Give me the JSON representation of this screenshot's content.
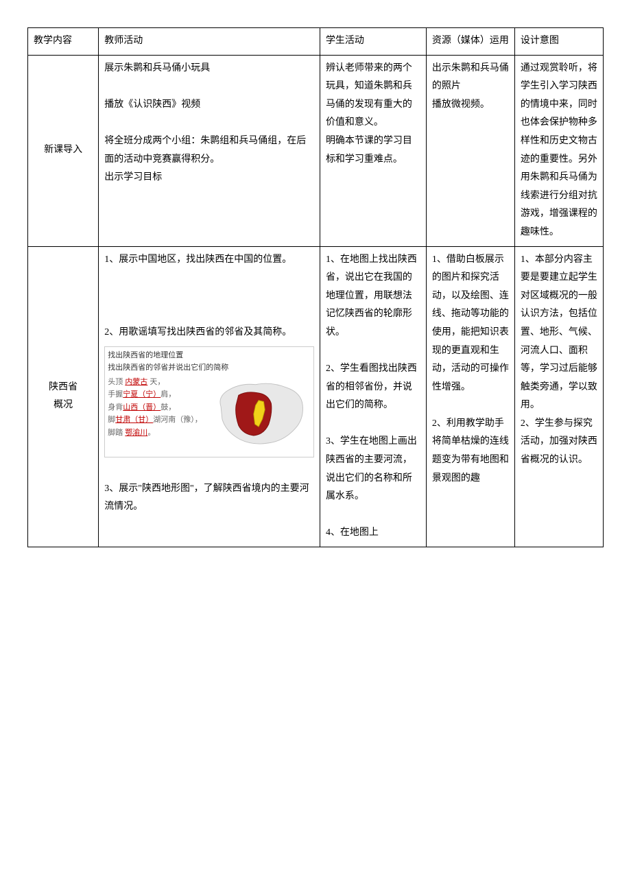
{
  "header": {
    "c1": "教学内容",
    "c2": "教师活动",
    "c3": "学生活动",
    "c4": "资源（媒体）运用",
    "c5": "设计意图"
  },
  "row1": {
    "c1": "新课导入",
    "c2": "展示朱鹮和兵马俑小玩具\n\n播放《认识陕西》视频\n\n将全班分成两个小组：朱鹮组和兵马俑组，在后面的活动中竞赛赢得积分。\n出示学习目标",
    "c3": "辨认老师带来的两个玩具，知道朱鹮和兵马俑的发现有重大的价值和意义。\n明确本节课的学习目标和学习重难点。",
    "c4": "出示朱鹮和兵马俑的照片\n播放微视频。",
    "c5": "通过观赏聆听，将学生引入学习陕西的情境中来，同时也体会保护物种多样性和历史文物古迹的重要性。另外用朱鹮和兵马俑为线索进行分组对抗游戏，增强课程的趣味性。"
  },
  "row2": {
    "c1": "陕西省\n概况",
    "c2a": "1、展示中国地区，找出陕西在中国的位置。",
    "c2b": "2、用歌谣填写找出陕西省的邻省及其简称。",
    "c2c": "3、展示\"陕西地形图\"，了解陕西省境内的主要河流情况。",
    "c3": "1、在地图上找出陕西省，说出它在我国的地理位置，用联想法记忆陕西省的轮廓形状。\n\n2、学生看图找出陕西省的相邻省份，并说出它们的简称。\n\n3、学生在地图上画出陕西省的主要河流，说出它们的名称和所属水系。\n\n4、在地图上",
    "c4": "1、借助白板展示的图片和探究活动，以及绘图、连线、拖动等功能的使用，能把知识表现的更直观和生动，活动的可操作性增强。\n\n2、利用教学助手将简单枯燥的连线题变为带有地图和景观图的趣",
    "c5": "1、本部分内容主要是要建立起学生对区域概况的一般认识方法，包括位置、地形、气候、河流人口、面积等，学习过后能够触类旁通，学以致用。\n2、学生参与探究活动，加强对陕西省概况的认识。"
  },
  "mapbox": {
    "line1": "找出陕西省的地理位置",
    "line2": "找出陕西省的邻省并说出它们的简称",
    "labels": [
      {
        "prefix": "头顶 ",
        "red": "内蒙古",
        "suffix": " 天，"
      },
      {
        "prefix": "手握",
        "red": "宁夏（宁）",
        "suffix": "肩，"
      },
      {
        "prefix": "身背",
        "red": "山西（晋）",
        "suffix": "鼓，"
      },
      {
        "prefix": "脚",
        "red": "甘肃（甘）",
        "suffix": "湖河南（豫），"
      },
      {
        "prefix": "脚踏 ",
        "red": "鄂渝川",
        "suffix": "。"
      }
    ],
    "map_colors": {
      "outline": "#c0c0c0",
      "fill": "#e8e8e8",
      "highlight": "#a01818",
      "shaanxi": "#f2d21a"
    }
  }
}
